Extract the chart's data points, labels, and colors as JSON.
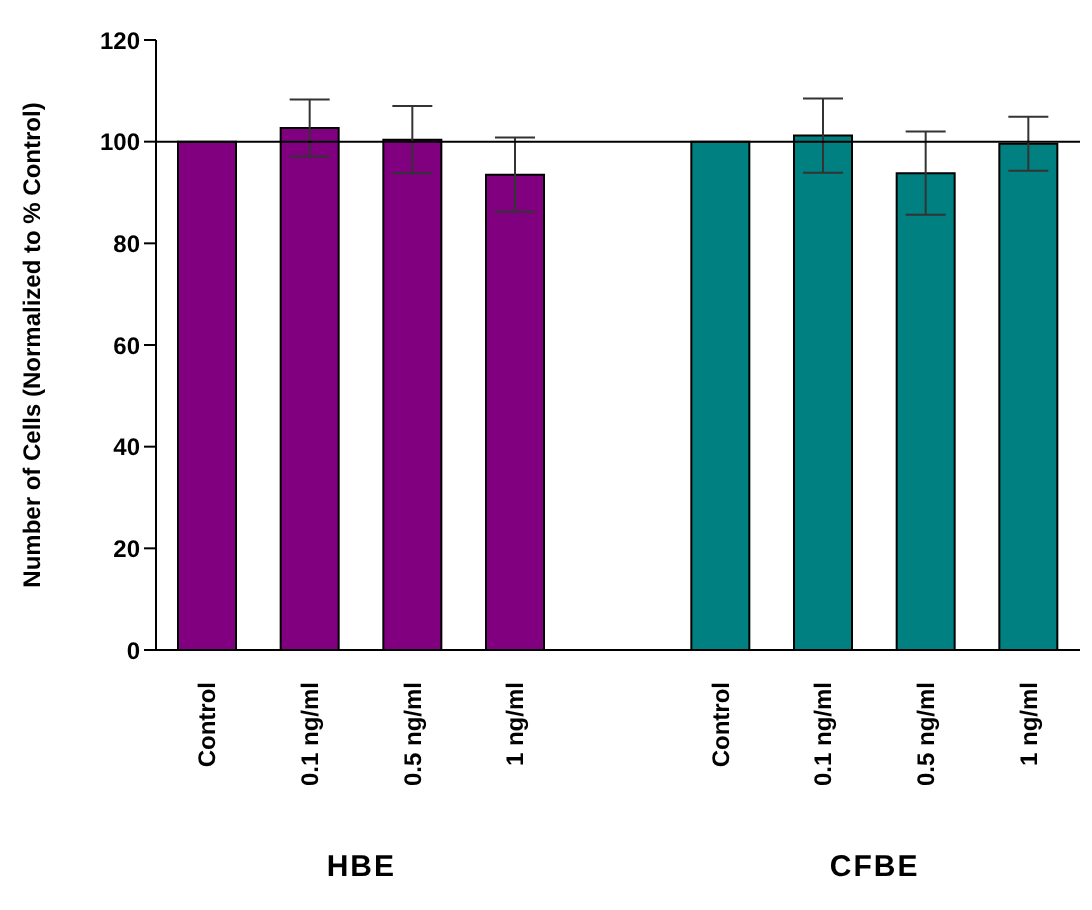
{
  "chart_data": {
    "type": "bar",
    "ylabel": "Number of Cells (Normalized to % Control)",
    "categories": [
      "Control",
      "0.1 ng/ml",
      "0.5 ng/ml",
      "1 ng/ml",
      null,
      "Control",
      "0.1 ng/ml",
      "0.5 ng/ml",
      "1 ng/ml"
    ],
    "values": [
      100,
      102.7,
      100.4,
      93.5,
      null,
      100,
      101.2,
      93.8,
      99.6
    ],
    "errors": [
      null,
      5.6,
      6.6,
      7.3,
      null,
      null,
      7.3,
      8.2,
      5.3
    ],
    "colors": [
      "#800080",
      "#800080",
      "#800080",
      "#800080",
      null,
      "#008080",
      "#008080",
      "#008080",
      "#008080"
    ],
    "ylim": [
      0,
      120
    ],
    "yticks": [
      0,
      20,
      40,
      60,
      80,
      100,
      120
    ],
    "ref_lines": [
      {
        "axis": "y",
        "value": 100,
        "color": "#000000"
      }
    ],
    "annotations": [
      "HBE",
      "CFBE"
    ],
    "grid": false,
    "legend": false
  }
}
